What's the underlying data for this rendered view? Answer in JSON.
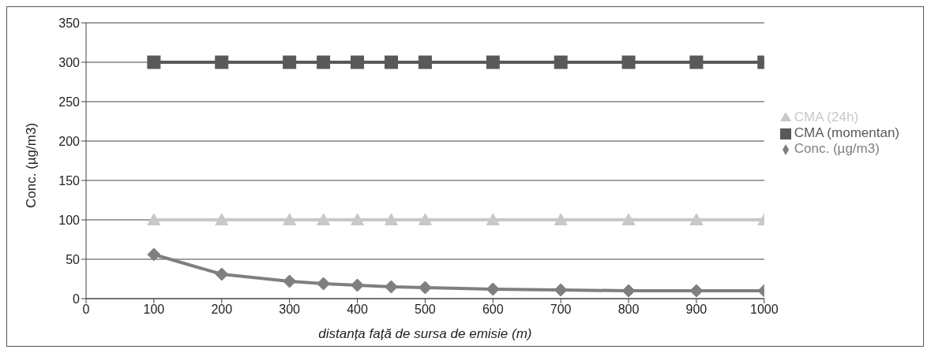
{
  "chart_data": {
    "type": "line",
    "xlabel": "distanța față de sursa de emisie (m)",
    "ylabel": "Conc. (µg/m3)",
    "x": [
      100,
      200,
      300,
      350,
      400,
      450,
      500,
      600,
      700,
      800,
      900,
      1000
    ],
    "series": [
      {
        "name": "Conc. (µg/m3)",
        "color": "#7f7f7f",
        "marker": "diamond",
        "values": [
          56,
          31,
          22,
          19,
          17,
          15,
          14,
          12,
          11,
          10,
          10,
          10
        ]
      },
      {
        "name": "CMA (momentan)",
        "color": "#595959",
        "marker": "square",
        "values": [
          300,
          300,
          300,
          300,
          300,
          300,
          300,
          300,
          300,
          300,
          300,
          300
        ]
      },
      {
        "name": "CMA (24h)",
        "color": "#c8c8c8",
        "marker": "triangle",
        "values": [
          100,
          100,
          100,
          100,
          100,
          100,
          100,
          100,
          100,
          100,
          100,
          100
        ]
      }
    ],
    "xlim": [
      0,
      1000
    ],
    "xticks": [
      0,
      100,
      200,
      300,
      400,
      500,
      600,
      700,
      800,
      900,
      1000
    ],
    "ylim": [
      0,
      350
    ],
    "yticks": [
      0,
      50,
      100,
      150,
      200,
      250,
      300,
      350
    ],
    "grid": "y",
    "legend": "right",
    "line_style": "solid"
  }
}
